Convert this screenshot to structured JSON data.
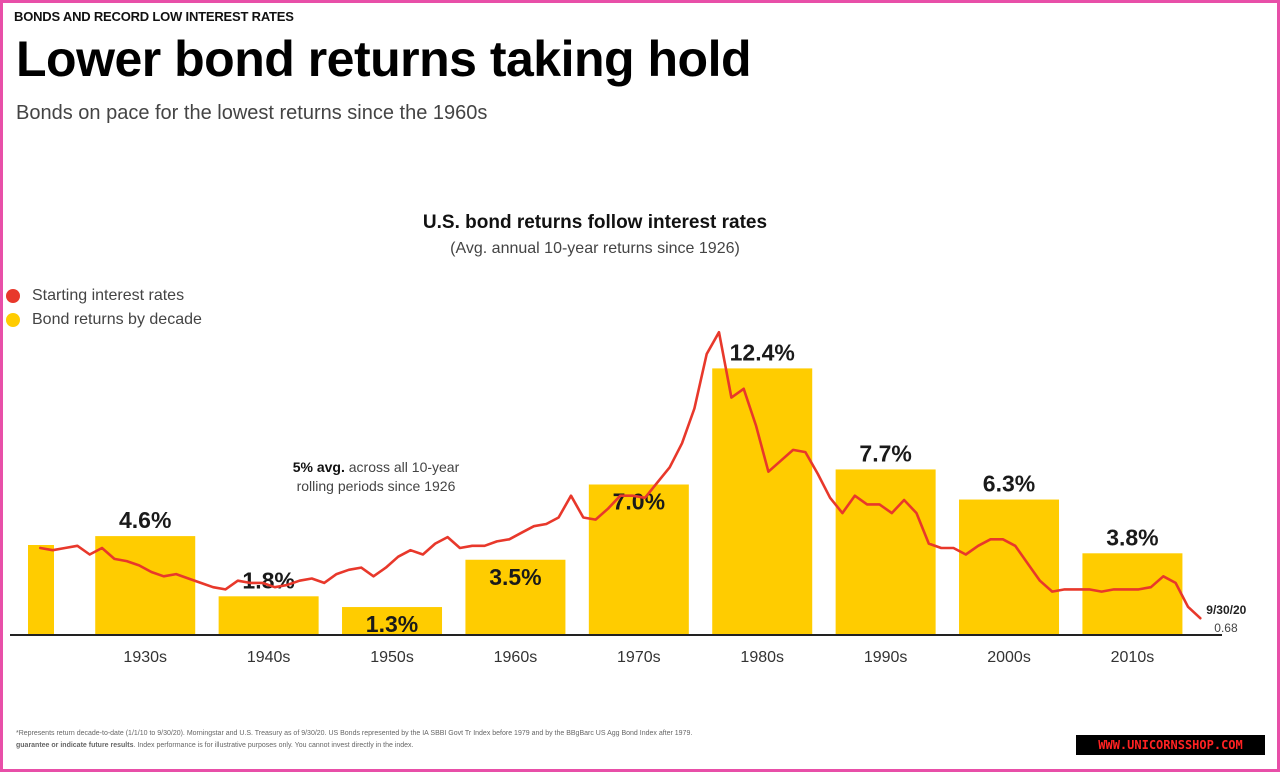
{
  "header": {
    "eyebrow": "BONDS AND RECORD LOW INTEREST RATES",
    "title": "Lower bond returns taking hold",
    "subtitle": "Bonds on pace for the lowest returns since the 1960s"
  },
  "colors": {
    "rate_line": "#e8382b",
    "bar": "#ffcc00",
    "axis": "#222222",
    "frame": "#e84fa8"
  },
  "chart_data": {
    "type": "bar",
    "title": "U.S. bond returns follow interest rates",
    "subtitle": "(Avg. annual 10-year returns since 1926)",
    "legend": {
      "position": "top-left",
      "entries": [
        {
          "name": "Starting interest rates",
          "color": "#e8382b"
        },
        {
          "name": "Bond returns by decade",
          "color": "#ffcc00"
        }
      ]
    },
    "categories": [
      "1930s",
      "1940s",
      "1950s",
      "1960s",
      "1970s",
      "1980s",
      "1990s",
      "2000s",
      "2010s"
    ],
    "series": [
      {
        "name": "Bond returns by decade",
        "values": [
          4.6,
          1.8,
          1.3,
          3.5,
          7.0,
          12.4,
          7.7,
          6.3,
          3.8
        ],
        "labels": [
          "4.6%",
          "1.8%",
          "1.3%",
          "3.5%",
          "7.0%",
          "12.4%",
          "7.7%",
          "6.3%",
          "3.8%"
        ]
      },
      {
        "name": "Starting interest rates",
        "type": "line",
        "x": [
          1926,
          1927,
          1928,
          1929,
          1930,
          1931,
          1932,
          1933,
          1934,
          1935,
          1936,
          1937,
          1938,
          1939,
          1940,
          1941,
          1942,
          1943,
          1944,
          1945,
          1946,
          1947,
          1948,
          1949,
          1950,
          1951,
          1952,
          1953,
          1954,
          1955,
          1956,
          1957,
          1958,
          1959,
          1960,
          1961,
          1962,
          1963,
          1964,
          1965,
          1966,
          1967,
          1968,
          1969,
          1970,
          1971,
          1972,
          1973,
          1974,
          1975,
          1976,
          1977,
          1978,
          1979,
          1980,
          1981,
          1982,
          1983,
          1984,
          1985,
          1986,
          1987,
          1988,
          1989,
          1990,
          1991,
          1992,
          1993,
          1994,
          1995,
          1996,
          1997,
          1998,
          1999,
          2000,
          2001,
          2002,
          2003,
          2004,
          2005,
          2006,
          2007,
          2008,
          2009,
          2010,
          2011,
          2012,
          2013,
          2014,
          2015,
          2016,
          2017,
          2018,
          2019,
          2020
        ],
        "y": [
          3.9,
          3.8,
          3.9,
          4.0,
          3.6,
          3.9,
          3.4,
          3.3,
          3.1,
          2.8,
          2.6,
          2.7,
          2.5,
          2.3,
          2.1,
          2.0,
          2.4,
          2.3,
          2.3,
          2.1,
          2.2,
          2.4,
          2.5,
          2.3,
          2.7,
          2.9,
          3.0,
          2.6,
          3.0,
          3.5,
          3.8,
          3.6,
          4.1,
          4.4,
          3.9,
          4.0,
          4.0,
          4.2,
          4.3,
          4.6,
          4.9,
          5.0,
          5.3,
          6.3,
          5.3,
          5.2,
          5.7,
          6.3,
          6.3,
          6.2,
          6.9,
          7.6,
          8.7,
          10.3,
          12.8,
          13.8,
          10.8,
          11.2,
          9.5,
          7.4,
          7.9,
          8.4,
          8.3,
          7.3,
          6.2,
          5.5,
          6.3,
          5.9,
          5.9,
          5.5,
          6.1,
          5.5,
          4.1,
          3.9,
          3.9,
          3.6,
          4.0,
          4.3,
          4.3,
          4.0,
          3.2,
          2.4,
          1.9,
          2.0,
          2.0,
          2.0,
          1.9,
          2.0,
          2.0,
          2.0,
          2.1,
          2.6,
          2.3,
          1.2,
          0.68
        ]
      }
    ],
    "endpoint_label": {
      "date": "9/30/20",
      "value": "0.68"
    },
    "x_range": [
      1926,
      2020
    ],
    "ylim": [
      0,
      14
    ],
    "grid": false
  },
  "annotation": {
    "bold": "5% avg.",
    "line1_rest": " across all 10-year",
    "line2": "rolling periods since 1926"
  },
  "footnote": {
    "line1": "*Represents return decade-to-date (1/1/10 to 9/30/20).  Morningstar and U.S. Treasury as of 9/30/20. US Bonds represented by the IA SBBI Govt Tr Index before 1979 and by the BBgBarc US Agg Bond Index after 1979.",
    "line2_bold": "guarantee or indicate future results",
    "line2_rest": ". Index performance is for illustrative purposes only. You cannot invest directly in the index."
  },
  "watermark": "WWW.UNICORNSSHOP.COM"
}
